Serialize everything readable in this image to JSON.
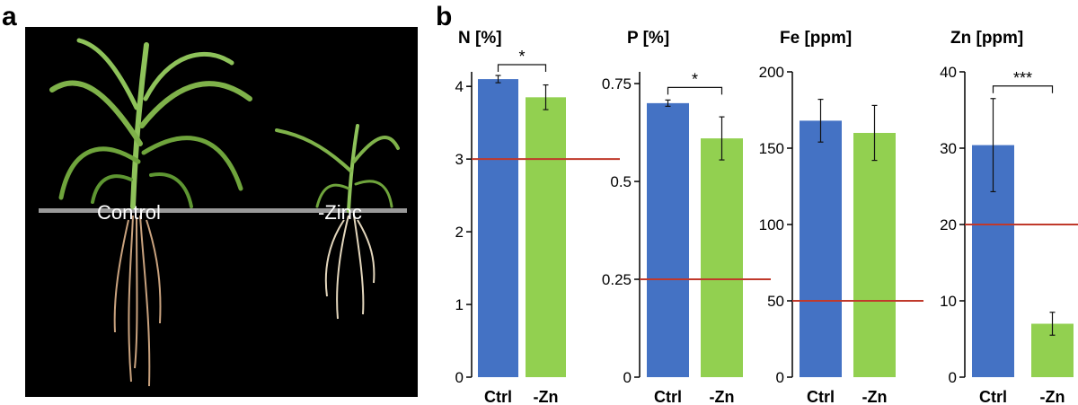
{
  "figure": {
    "panel_a_letter": "a",
    "panel_b_letter": "b",
    "photo_labels": {
      "control": "Control",
      "zinc": "-Zinc"
    }
  },
  "colors": {
    "ctrl_bar": "#4472c4",
    "zn_bar": "#92d050",
    "threshold_line": "#c0392b",
    "axis": "#000000",
    "photo_bg": "#000000",
    "leaf": "#7fb24a",
    "root": "#d8c9a8"
  },
  "chart_data": [
    {
      "type": "bar",
      "title": "N [%]",
      "categories": [
        "Ctrl",
        "-Zn"
      ],
      "values": [
        4.1,
        3.85
      ],
      "errors": [
        0.05,
        0.17
      ],
      "ylim": [
        0,
        4.2
      ],
      "yticks": [
        0,
        1,
        2,
        3,
        4
      ],
      "ytick_labels": [
        "0",
        "1",
        "2",
        "3",
        "4"
      ],
      "threshold": 3,
      "significance": "*"
    },
    {
      "type": "bar",
      "title": "P [%]",
      "categories": [
        "Ctrl",
        "-Zn"
      ],
      "values": [
        0.7,
        0.61
      ],
      "errors": [
        0.008,
        0.055
      ],
      "ylim": [
        0,
        0.78
      ],
      "yticks": [
        0,
        0.25,
        0.5,
        0.75
      ],
      "ytick_labels": [
        "0",
        "0.25",
        "0.5",
        "0.75"
      ],
      "threshold": 0.25,
      "significance": "*"
    },
    {
      "type": "bar",
      "title": "Fe [ppm]",
      "categories": [
        "Ctrl",
        "-Zn"
      ],
      "values": [
        168,
        160
      ],
      "errors": [
        14,
        18
      ],
      "ylim": [
        0,
        200
      ],
      "yticks": [
        0,
        50,
        100,
        150,
        200
      ],
      "ytick_labels": [
        "0",
        "50",
        "100",
        "150",
        "200"
      ],
      "threshold": 50,
      "significance": ""
    },
    {
      "type": "bar",
      "title": "Zn [ppm]",
      "categories": [
        "Ctrl",
        "-Zn"
      ],
      "values": [
        30.4,
        7
      ],
      "errors": [
        6.1,
        1.5
      ],
      "ylim": [
        0,
        40
      ],
      "yticks": [
        0,
        10,
        20,
        30,
        40
      ],
      "ytick_labels": [
        "0",
        "10",
        "20",
        "30",
        "40"
      ],
      "threshold": 20,
      "significance": "***"
    }
  ]
}
